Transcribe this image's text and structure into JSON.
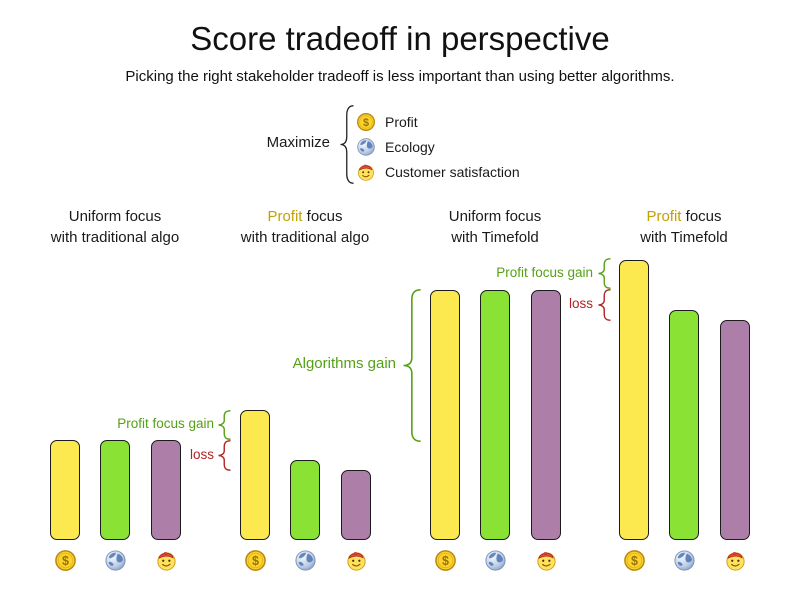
{
  "header": {
    "title": "Score tradeoff in perspective",
    "subtitle": "Picking the right stakeholder tradeoff is less important than using better algorithms."
  },
  "legend": {
    "label": "Maximize",
    "items": [
      {
        "icon": "coin-icon",
        "label": "Profit"
      },
      {
        "icon": "globe-icon",
        "label": "Ecology"
      },
      {
        "icon": "smiley-icon",
        "label": "Customer satisfaction"
      }
    ]
  },
  "colors": {
    "profit_bar": "#fce94f",
    "ecology_bar": "#8ae234",
    "satisfaction_bar": "#ad7fa8",
    "bar_border": "#1c1c1c",
    "gain_text": "#55a114",
    "loss_text": "#b22222",
    "profit_word": "#c4a000",
    "brace_black": "#222222"
  },
  "groups": [
    {
      "line1": [
        {
          "text": "Uniform focus"
        }
      ],
      "line2": "with traditional algo"
    },
    {
      "line1": [
        {
          "text": "Profit",
          "highlight": true
        },
        {
          "text": " focus"
        }
      ],
      "line2": "with traditional algo"
    },
    {
      "line1": [
        {
          "text": "Uniform focus"
        }
      ],
      "line2": "with Timefold"
    },
    {
      "line1": [
        {
          "text": "Profit",
          "highlight": true
        },
        {
          "text": " focus"
        }
      ],
      "line2": "with Timefold"
    }
  ],
  "chart_data": {
    "type": "bar",
    "title": "Score tradeoff in perspective",
    "subtitle": "Picking the right stakeholder tradeoff is less important than using better algorithms.",
    "legend_label": "Maximize",
    "legend_position": "top-center",
    "grid": false,
    "categories": [
      "Uniform focus with traditional algo",
      "Profit focus with traditional algo",
      "Uniform focus with Timefold",
      "Profit focus with Timefold"
    ],
    "series": [
      {
        "name": "Profit",
        "icon": "coin-icon",
        "color": "#fce94f",
        "values": [
          100,
          130,
          250,
          280
        ]
      },
      {
        "name": "Ecology",
        "icon": "globe-icon",
        "color": "#8ae234",
        "values": [
          100,
          80,
          250,
          230
        ]
      },
      {
        "name": "Customer satisfaction",
        "icon": "smiley-icon",
        "color": "#ad7fa8",
        "values": [
          100,
          70,
          250,
          220
        ]
      }
    ],
    "value_axis": {
      "visible": false,
      "range": [
        0,
        300
      ],
      "units": "relative score (estimated, no axis shown)"
    },
    "annotations": [
      {
        "text": "Profit focus gain",
        "applies_to": "Profit focus with traditional algo",
        "color": "green"
      },
      {
        "text": "loss",
        "applies_to": "Profit focus with traditional algo",
        "color": "red"
      },
      {
        "text": "Algorithms gain",
        "applies_to": "Uniform focus with Timefold",
        "color": "green"
      },
      {
        "text": "Profit focus gain",
        "applies_to": "Profit focus with Timefold",
        "color": "green"
      },
      {
        "text": "loss",
        "applies_to": "Profit focus with Timefold",
        "color": "red"
      }
    ]
  }
}
